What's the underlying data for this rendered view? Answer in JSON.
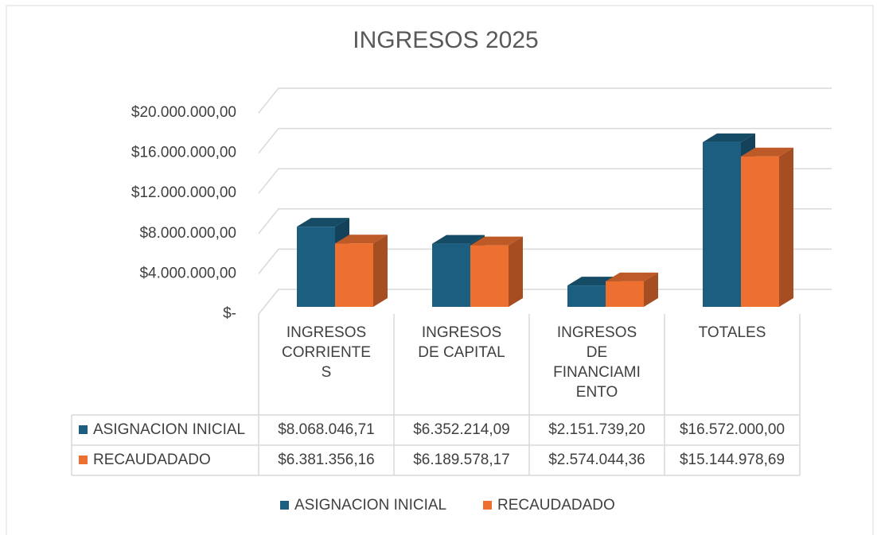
{
  "chart_data": {
    "type": "bar3d",
    "title": "INGRESOS 2025",
    "categories": [
      "INGRESOS CORRIENTES",
      "INGRESOS DE CAPITAL",
      "INGRESOS DE FINANCIAMIENTO",
      "TOTALES"
    ],
    "series": [
      {
        "name": "ASIGNACION INICIAL",
        "color": "#1b5e80",
        "values": [
          8068046.71,
          6352214.09,
          2151739.2,
          16572000.0
        ],
        "value_labels": [
          "$8.068.046,71",
          "$6.352.214,09",
          "$2.151.739,20",
          "$16.572.000,00"
        ]
      },
      {
        "name": "RECAUDADADO",
        "color": "#ed7031",
        "values": [
          6381356.16,
          6189578.17,
          2574044.36,
          15144978.69
        ],
        "value_labels": [
          "$6.381.356,16",
          "$6.189.578,17",
          "$2.574.044,36",
          "$15.144.978,69"
        ]
      }
    ],
    "ylim": [
      0,
      20000000
    ],
    "yticks": [
      {
        "value": 0,
        "label": "$-"
      },
      {
        "value": 4000000,
        "label": "$4.000.000,00"
      },
      {
        "value": 8000000,
        "label": "$8.000.000,00"
      },
      {
        "value": 12000000,
        "label": "$12.000.000,00"
      },
      {
        "value": 16000000,
        "label": "$16.000.000,00"
      },
      {
        "value": 20000000,
        "label": "$20.000.000,00"
      }
    ],
    "grid": true,
    "legend": "bottom",
    "data_table": true
  }
}
